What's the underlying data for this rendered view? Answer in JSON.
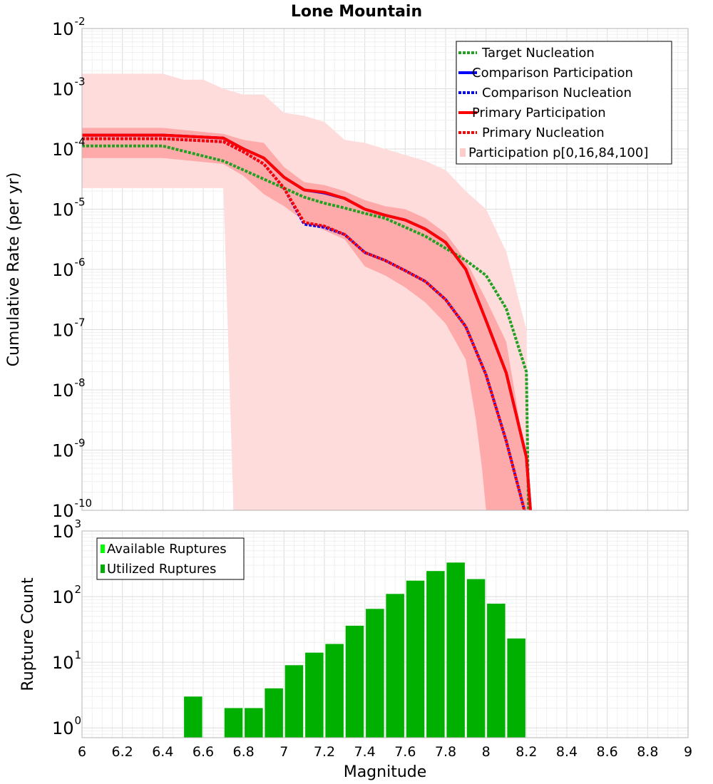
{
  "chart_data": [
    {
      "type": "line",
      "title": "Lone Mountain",
      "xlabel": "",
      "ylabel": "Cumulative Rate (per yr)",
      "xlim": [
        6,
        9
      ],
      "ylim_exp": [
        -10,
        -2
      ],
      "yscale": "log",
      "y_tick_exponents": [
        "-2",
        "-3",
        "-4",
        "-5",
        "-6",
        "-7",
        "-8",
        "-9",
        "-10"
      ],
      "legend_position": "top-right",
      "legend": [
        {
          "label": "Target Nucleation",
          "color": "#22a022",
          "style": "dotted"
        },
        {
          "label": "Comparison Participation",
          "color": "#0000ff",
          "style": "solid"
        },
        {
          "label": "Comparison Nucleation",
          "color": "#0000ff",
          "style": "dotted"
        },
        {
          "label": "Primary Participation",
          "color": "#ff0000",
          "style": "solid"
        },
        {
          "label": "Primary Nucleation",
          "color": "#ff0000",
          "style": "dotted"
        },
        {
          "label": "Participation p[0,16,84,100]",
          "color": "#ffcccc",
          "style": "band"
        }
      ],
      "bands": [
        {
          "name": "p0-p100",
          "color": "#ffdcdc",
          "upper": [
            [
              6.0,
              -2.75
            ],
            [
              6.4,
              -2.75
            ],
            [
              6.5,
              -2.85
            ],
            [
              6.6,
              -2.85
            ],
            [
              6.7,
              -3.0
            ],
            [
              6.8,
              -3.1
            ],
            [
              6.9,
              -3.1
            ],
            [
              7.0,
              -3.4
            ],
            [
              7.1,
              -3.45
            ],
            [
              7.2,
              -3.55
            ],
            [
              7.3,
              -3.85
            ],
            [
              7.4,
              -3.9
            ],
            [
              7.5,
              -4.0
            ],
            [
              7.6,
              -4.1
            ],
            [
              7.7,
              -4.2
            ],
            [
              7.8,
              -4.35
            ],
            [
              7.9,
              -4.7
            ],
            [
              8.0,
              -5.0
            ],
            [
              8.1,
              -5.7
            ],
            [
              8.2,
              -7.0
            ],
            [
              8.22,
              -10.0
            ]
          ],
          "lower": [
            [
              6.0,
              -4.65
            ],
            [
              6.7,
              -4.65
            ],
            [
              6.75,
              -10.0
            ]
          ]
        },
        {
          "name": "p16-p84",
          "color": "#ffaaaa",
          "upper": [
            [
              6.0,
              -3.65
            ],
            [
              6.4,
              -3.65
            ],
            [
              6.7,
              -3.75
            ],
            [
              6.8,
              -3.85
            ],
            [
              6.9,
              -3.9
            ],
            [
              7.0,
              -4.3
            ],
            [
              7.1,
              -4.55
            ],
            [
              7.2,
              -4.6
            ],
            [
              7.3,
              -4.7
            ],
            [
              7.4,
              -4.85
            ],
            [
              7.5,
              -4.95
            ],
            [
              7.6,
              -5.0
            ],
            [
              7.7,
              -5.15
            ],
            [
              7.8,
              -5.4
            ],
            [
              7.9,
              -5.85
            ],
            [
              8.0,
              -6.5
            ],
            [
              8.1,
              -7.2
            ],
            [
              8.15,
              -8.2
            ],
            [
              8.2,
              -9.2
            ],
            [
              8.22,
              -10.0
            ]
          ],
          "lower": [
            [
              6.0,
              -4.15
            ],
            [
              6.4,
              -4.15
            ],
            [
              6.7,
              -4.25
            ],
            [
              6.8,
              -4.45
            ],
            [
              6.9,
              -4.75
            ],
            [
              7.0,
              -4.95
            ],
            [
              7.1,
              -5.2
            ],
            [
              7.2,
              -5.35
            ],
            [
              7.3,
              -5.5
            ],
            [
              7.4,
              -5.95
            ],
            [
              7.5,
              -6.1
            ],
            [
              7.6,
              -6.3
            ],
            [
              7.7,
              -6.55
            ],
            [
              7.8,
              -6.9
            ],
            [
              7.9,
              -7.5
            ],
            [
              7.95,
              -8.5
            ],
            [
              7.98,
              -9.3
            ],
            [
              8.0,
              -10.0
            ]
          ]
        }
      ],
      "series": [
        {
          "name": "Target Nucleation",
          "color": "#22a022",
          "dash": "dotted",
          "points": [
            [
              6.0,
              -3.95
            ],
            [
              6.4,
              -3.95
            ],
            [
              6.7,
              -4.2
            ],
            [
              6.8,
              -4.35
            ],
            [
              6.9,
              -4.5
            ],
            [
              7.0,
              -4.65
            ],
            [
              7.1,
              -4.8
            ],
            [
              7.2,
              -4.9
            ],
            [
              7.3,
              -4.98
            ],
            [
              7.4,
              -5.07
            ],
            [
              7.5,
              -5.15
            ],
            [
              7.6,
              -5.3
            ],
            [
              7.7,
              -5.45
            ],
            [
              7.8,
              -5.65
            ],
            [
              7.9,
              -5.85
            ],
            [
              8.0,
              -6.1
            ],
            [
              8.1,
              -6.65
            ],
            [
              8.2,
              -7.7
            ],
            [
              8.21,
              -10.0
            ]
          ]
        },
        {
          "name": "Comparison Participation",
          "color": "#0000ff",
          "dash": "solid",
          "points": [
            [
              6.0,
              -3.77
            ],
            [
              6.4,
              -3.77
            ],
            [
              6.7,
              -3.82
            ],
            [
              6.8,
              -4.0
            ],
            [
              6.9,
              -4.15
            ],
            [
              7.0,
              -4.47
            ],
            [
              7.1,
              -4.68
            ],
            [
              7.2,
              -4.73
            ],
            [
              7.3,
              -4.82
            ],
            [
              7.4,
              -5.0
            ],
            [
              7.5,
              -5.1
            ],
            [
              7.6,
              -5.18
            ],
            [
              7.7,
              -5.33
            ],
            [
              7.8,
              -5.55
            ],
            [
              7.9,
              -6.0
            ],
            [
              8.0,
              -6.85
            ],
            [
              8.1,
              -7.72
            ],
            [
              8.2,
              -9.12
            ],
            [
              8.22,
              -10.0
            ]
          ]
        },
        {
          "name": "Comparison Nucleation",
          "color": "#0000ff",
          "dash": "dotted",
          "points": [
            [
              6.0,
              -3.83
            ],
            [
              6.4,
              -3.83
            ],
            [
              6.7,
              -3.88
            ],
            [
              6.8,
              -4.05
            ],
            [
              6.9,
              -4.25
            ],
            [
              7.0,
              -4.65
            ],
            [
              7.1,
              -5.25
            ],
            [
              7.2,
              -5.3
            ],
            [
              7.3,
              -5.42
            ],
            [
              7.4,
              -5.72
            ],
            [
              7.5,
              -5.85
            ],
            [
              7.6,
              -6.02
            ],
            [
              7.7,
              -6.2
            ],
            [
              7.8,
              -6.5
            ],
            [
              7.9,
              -6.95
            ],
            [
              8.0,
              -7.75
            ],
            [
              8.1,
              -8.85
            ],
            [
              8.19,
              -10.0
            ]
          ]
        },
        {
          "name": "Primary Participation",
          "color": "#ff0000",
          "dash": "solid",
          "points": [
            [
              6.0,
              -3.77
            ],
            [
              6.4,
              -3.77
            ],
            [
              6.7,
              -3.82
            ],
            [
              6.8,
              -4.0
            ],
            [
              6.9,
              -4.15
            ],
            [
              7.0,
              -4.47
            ],
            [
              7.1,
              -4.68
            ],
            [
              7.2,
              -4.72
            ],
            [
              7.3,
              -4.82
            ],
            [
              7.4,
              -5.0
            ],
            [
              7.5,
              -5.1
            ],
            [
              7.6,
              -5.18
            ],
            [
              7.7,
              -5.33
            ],
            [
              7.8,
              -5.55
            ],
            [
              7.9,
              -6.0
            ],
            [
              8.0,
              -6.85
            ],
            [
              8.1,
              -7.72
            ],
            [
              8.2,
              -9.12
            ],
            [
              8.22,
              -10.0
            ]
          ]
        },
        {
          "name": "Primary Nucleation",
          "color": "#ff0000",
          "dash": "dotted",
          "points": [
            [
              6.0,
              -3.83
            ],
            [
              6.4,
              -3.83
            ],
            [
              6.7,
              -3.88
            ],
            [
              6.8,
              -4.05
            ],
            [
              6.9,
              -4.25
            ],
            [
              7.0,
              -4.65
            ],
            [
              7.1,
              -5.22
            ],
            [
              7.2,
              -5.28
            ],
            [
              7.3,
              -5.42
            ],
            [
              7.4,
              -5.72
            ],
            [
              7.5,
              -5.85
            ],
            [
              7.6,
              -6.02
            ],
            [
              7.7,
              -6.2
            ],
            [
              7.8,
              -6.5
            ],
            [
              7.9,
              -6.95
            ],
            [
              8.0,
              -7.75
            ],
            [
              8.1,
              -8.85
            ],
            [
              8.19,
              -10.0
            ]
          ]
        }
      ]
    },
    {
      "type": "bar",
      "title": "",
      "xlabel": "Magnitude",
      "ylabel": "Rupture Count",
      "xlim": [
        6,
        9
      ],
      "ylim_exp": [
        -0.15,
        3
      ],
      "yscale": "log",
      "x_ticks": [
        "6",
        "6.2",
        "6.4",
        "6.6",
        "6.8",
        "7",
        "7.2",
        "7.4",
        "7.6",
        "7.8",
        "8",
        "8.2",
        "8.4",
        "8.6",
        "8.8",
        "9"
      ],
      "y_tick_exponents": [
        "0",
        "1",
        "2",
        "3"
      ],
      "legend_position": "top-left",
      "legend": [
        {
          "label": "Available Ruptures",
          "color": "#00ff00"
        },
        {
          "label": "Utilized Ruptures",
          "color": "#00b000"
        }
      ],
      "bar_width": 0.09,
      "bar_color": "#00b000",
      "bars": [
        {
          "x": 6.55,
          "value": 3
        },
        {
          "x": 6.75,
          "value": 2
        },
        {
          "x": 6.85,
          "value": 2
        },
        {
          "x": 6.95,
          "value": 4
        },
        {
          "x": 7.05,
          "value": 9
        },
        {
          "x": 7.15,
          "value": 14
        },
        {
          "x": 7.25,
          "value": 19
        },
        {
          "x": 7.35,
          "value": 36
        },
        {
          "x": 7.45,
          "value": 65
        },
        {
          "x": 7.55,
          "value": 110
        },
        {
          "x": 7.65,
          "value": 175
        },
        {
          "x": 7.75,
          "value": 245
        },
        {
          "x": 7.85,
          "value": 330
        },
        {
          "x": 7.95,
          "value": 185
        },
        {
          "x": 8.05,
          "value": 78
        },
        {
          "x": 8.15,
          "value": 23
        }
      ]
    }
  ]
}
